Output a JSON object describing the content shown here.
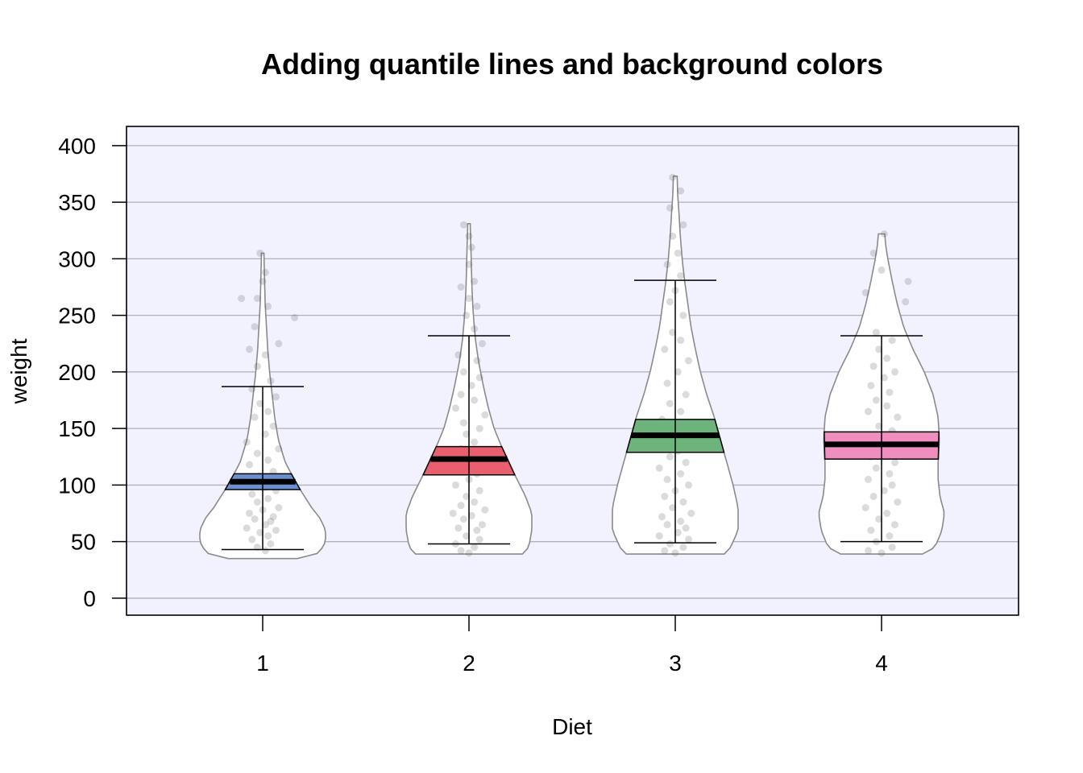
{
  "chart_data": {
    "type": "violin",
    "title": "Adding quantile lines and background colors",
    "xlabel": "Diet",
    "ylabel": "weight",
    "ylim": [
      -15,
      417
    ],
    "y_ticks": [
      0,
      50,
      100,
      150,
      200,
      250,
      300,
      350,
      400
    ],
    "categories": [
      "1",
      "2",
      "3",
      "4"
    ],
    "background_color": "#f2f2ff",
    "grid": true,
    "groups": [
      {
        "name": "1",
        "color": "#6b8fd0",
        "min": 35,
        "max": 305,
        "whisker_low": 43,
        "whisker_high": 187,
        "q1": 96,
        "median": 103,
        "q3": 110,
        "profile": [
          [
            35,
            0.55
          ],
          [
            40,
            0.9
          ],
          [
            50,
            1.0
          ],
          [
            60,
            1.0
          ],
          [
            70,
            0.92
          ],
          [
            80,
            0.78
          ],
          [
            100,
            0.55
          ],
          [
            120,
            0.36
          ],
          [
            140,
            0.25
          ],
          [
            160,
            0.19
          ],
          [
            180,
            0.15
          ],
          [
            200,
            0.11
          ],
          [
            220,
            0.08
          ],
          [
            240,
            0.06
          ],
          [
            260,
            0.04
          ],
          [
            280,
            0.03
          ],
          [
            305,
            0.02
          ]
        ],
        "points": [
          [
            0.01,
            42
          ],
          [
            -0.02,
            45
          ],
          [
            0.03,
            48
          ],
          [
            -0.04,
            52
          ],
          [
            0.02,
            55
          ],
          [
            -0.01,
            58
          ],
          [
            0.05,
            60
          ],
          [
            -0.06,
            62
          ],
          [
            0.01,
            65
          ],
          [
            0.03,
            68
          ],
          [
            -0.03,
            70
          ],
          [
            0.04,
            72
          ],
          [
            -0.05,
            75
          ],
          [
            0.0,
            78
          ],
          [
            0.06,
            80
          ],
          [
            -0.02,
            85
          ],
          [
            0.02,
            88
          ],
          [
            -0.04,
            92
          ],
          [
            0.05,
            95
          ],
          [
            0.01,
            98
          ],
          [
            -0.03,
            102
          ],
          [
            0.03,
            105
          ],
          [
            -0.01,
            108
          ],
          [
            0.04,
            112
          ],
          [
            -0.05,
            118
          ],
          [
            0.02,
            122
          ],
          [
            -0.02,
            128
          ],
          [
            0.06,
            132
          ],
          [
            -0.06,
            138
          ],
          [
            0.01,
            145
          ],
          [
            0.04,
            152
          ],
          [
            -0.03,
            160
          ],
          [
            0.02,
            165
          ],
          [
            -0.01,
            172
          ],
          [
            0.05,
            178
          ],
          [
            -0.04,
            185
          ],
          [
            0.03,
            192
          ],
          [
            -0.02,
            205
          ],
          [
            0.01,
            215
          ],
          [
            -0.05,
            220
          ],
          [
            0.06,
            225
          ],
          [
            -0.03,
            240
          ],
          [
            0.02,
            258
          ],
          [
            -0.02,
            265
          ],
          [
            0.0,
            280
          ],
          [
            0.01,
            288
          ],
          [
            -0.01,
            305
          ],
          [
            0.12,
            248
          ],
          [
            -0.08,
            265
          ]
        ]
      },
      {
        "name": "2",
        "color": "#ea5f6f",
        "min": 39,
        "max": 331,
        "whisker_low": 48,
        "whisker_high": 232,
        "q1": 109,
        "median": 123,
        "q3": 134,
        "profile": [
          [
            39,
            0.85
          ],
          [
            45,
            0.95
          ],
          [
            60,
            1.0
          ],
          [
            75,
            1.0
          ],
          [
            90,
            0.9
          ],
          [
            110,
            0.72
          ],
          [
            130,
            0.55
          ],
          [
            150,
            0.4
          ],
          [
            170,
            0.3
          ],
          [
            190,
            0.22
          ],
          [
            210,
            0.15
          ],
          [
            230,
            0.1
          ],
          [
            250,
            0.07
          ],
          [
            270,
            0.05
          ],
          [
            290,
            0.04
          ],
          [
            310,
            0.03
          ],
          [
            331,
            0.02
          ]
        ],
        "points": [
          [
            0.0,
            40
          ],
          [
            -0.03,
            42
          ],
          [
            0.02,
            45
          ],
          [
            -0.05,
            48
          ],
          [
            0.04,
            52
          ],
          [
            -0.01,
            55
          ],
          [
            0.03,
            60
          ],
          [
            -0.04,
            62
          ],
          [
            0.05,
            65
          ],
          [
            -0.02,
            70
          ],
          [
            0.01,
            73
          ],
          [
            -0.06,
            75
          ],
          [
            0.06,
            78
          ],
          [
            -0.03,
            82
          ],
          [
            0.02,
            85
          ],
          [
            -0.01,
            90
          ],
          [
            0.04,
            95
          ],
          [
            -0.05,
            100
          ],
          [
            0.0,
            105
          ],
          [
            0.03,
            110
          ],
          [
            -0.02,
            115
          ],
          [
            0.05,
            120
          ],
          [
            -0.04,
            125
          ],
          [
            0.01,
            128
          ],
          [
            -0.03,
            132
          ],
          [
            0.02,
            138
          ],
          [
            -0.01,
            145
          ],
          [
            0.04,
            150
          ],
          [
            -0.02,
            155
          ],
          [
            0.06,
            162
          ],
          [
            -0.05,
            168
          ],
          [
            0.02,
            175
          ],
          [
            -0.03,
            180
          ],
          [
            0.01,
            188
          ],
          [
            0.04,
            195
          ],
          [
            -0.02,
            200
          ],
          [
            0.03,
            210
          ],
          [
            -0.04,
            215
          ],
          [
            0.05,
            225
          ],
          [
            0.02,
            238
          ],
          [
            -0.01,
            250
          ],
          [
            0.03,
            258
          ],
          [
            0.0,
            265
          ],
          [
            -0.03,
            275
          ],
          [
            0.02,
            280
          ],
          [
            0.0,
            295
          ],
          [
            0.01,
            310
          ],
          [
            0.0,
            320
          ],
          [
            -0.02,
            330
          ]
        ]
      },
      {
        "name": "3",
        "color": "#6cb47c",
        "min": 39,
        "max": 373,
        "whisker_low": 49,
        "whisker_high": 281,
        "q1": 129,
        "median": 144,
        "q3": 158,
        "profile": [
          [
            39,
            0.78
          ],
          [
            45,
            0.88
          ],
          [
            60,
            1.0
          ],
          [
            80,
            1.0
          ],
          [
            100,
            0.92
          ],
          [
            120,
            0.82
          ],
          [
            140,
            0.72
          ],
          [
            160,
            0.62
          ],
          [
            180,
            0.5
          ],
          [
            200,
            0.4
          ],
          [
            220,
            0.32
          ],
          [
            240,
            0.25
          ],
          [
            260,
            0.2
          ],
          [
            280,
            0.15
          ],
          [
            300,
            0.11
          ],
          [
            320,
            0.08
          ],
          [
            340,
            0.06
          ],
          [
            355,
            0.04
          ],
          [
            373,
            0.03
          ]
        ],
        "points": [
          [
            0.0,
            40
          ],
          [
            -0.04,
            42
          ],
          [
            0.03,
            45
          ],
          [
            -0.02,
            48
          ],
          [
            0.05,
            52
          ],
          [
            -0.06,
            55
          ],
          [
            0.01,
            58
          ],
          [
            0.04,
            62
          ],
          [
            -0.03,
            65
          ],
          [
            0.02,
            68
          ],
          [
            -0.05,
            72
          ],
          [
            0.06,
            75
          ],
          [
            -0.01,
            80
          ],
          [
            0.03,
            85
          ],
          [
            -0.04,
            90
          ],
          [
            0.0,
            95
          ],
          [
            0.05,
            100
          ],
          [
            -0.03,
            105
          ],
          [
            0.02,
            110
          ],
          [
            -0.06,
            115
          ],
          [
            0.04,
            120
          ],
          [
            -0.02,
            125
          ],
          [
            0.01,
            130
          ],
          [
            -0.04,
            135
          ],
          [
            0.06,
            140
          ],
          [
            -0.01,
            148
          ],
          [
            0.03,
            152
          ],
          [
            -0.05,
            158
          ],
          [
            0.02,
            165
          ],
          [
            -0.02,
            172
          ],
          [
            0.04,
            180
          ],
          [
            -0.03,
            190
          ],
          [
            0.01,
            200
          ],
          [
            0.05,
            210
          ],
          [
            -0.04,
            220
          ],
          [
            0.02,
            228
          ],
          [
            -0.01,
            235
          ],
          [
            0.03,
            250
          ],
          [
            -0.02,
            262
          ],
          [
            0.0,
            272
          ],
          [
            0.02,
            285
          ],
          [
            -0.03,
            295
          ],
          [
            0.01,
            305
          ],
          [
            -0.01,
            320
          ],
          [
            0.03,
            330
          ],
          [
            -0.02,
            345
          ],
          [
            0.02,
            360
          ],
          [
            -0.01,
            372
          ]
        ]
      },
      {
        "name": "4",
        "color": "#f08fbf",
        "min": 39,
        "max": 322,
        "whisker_low": 50,
        "whisker_high": 232,
        "q1": 123,
        "median": 136,
        "q3": 147,
        "profile": [
          [
            39,
            0.65
          ],
          [
            45,
            0.85
          ],
          [
            60,
            0.96
          ],
          [
            75,
            1.0
          ],
          [
            90,
            0.93
          ],
          [
            105,
            0.9
          ],
          [
            120,
            0.9
          ],
          [
            140,
            0.92
          ],
          [
            160,
            0.9
          ],
          [
            180,
            0.82
          ],
          [
            200,
            0.68
          ],
          [
            220,
            0.5
          ],
          [
            240,
            0.35
          ],
          [
            260,
            0.25
          ],
          [
            280,
            0.17
          ],
          [
            300,
            0.1
          ],
          [
            310,
            0.07
          ],
          [
            322,
            0.05
          ]
        ],
        "points": [
          [
            0.0,
            40
          ],
          [
            -0.05,
            42
          ],
          [
            0.04,
            45
          ],
          [
            -0.02,
            50
          ],
          [
            0.03,
            55
          ],
          [
            -0.04,
            60
          ],
          [
            0.05,
            65
          ],
          [
            -0.01,
            70
          ],
          [
            0.02,
            75
          ],
          [
            -0.06,
            80
          ],
          [
            0.06,
            85
          ],
          [
            -0.03,
            90
          ],
          [
            0.01,
            95
          ],
          [
            0.04,
            100
          ],
          [
            -0.05,
            105
          ],
          [
            0.03,
            110
          ],
          [
            -0.02,
            115
          ],
          [
            0.05,
            120
          ],
          [
            -0.04,
            125
          ],
          [
            0.0,
            130
          ],
          [
            0.02,
            135
          ],
          [
            -0.03,
            140
          ],
          [
            0.04,
            148
          ],
          [
            -0.01,
            152
          ],
          [
            0.06,
            160
          ],
          [
            -0.05,
            165
          ],
          [
            0.02,
            170
          ],
          [
            -0.02,
            175
          ],
          [
            0.03,
            182
          ],
          [
            -0.04,
            188
          ],
          [
            0.01,
            195
          ],
          [
            0.05,
            200
          ],
          [
            -0.03,
            205
          ],
          [
            0.02,
            212
          ],
          [
            -0.01,
            220
          ],
          [
            0.04,
            228
          ],
          [
            -0.02,
            235
          ],
          [
            0.09,
            262
          ],
          [
            -0.06,
            270
          ],
          [
            0.1,
            280
          ],
          [
            0.0,
            290
          ],
          [
            -0.03,
            305
          ],
          [
            0.01,
            322
          ]
        ]
      }
    ]
  }
}
